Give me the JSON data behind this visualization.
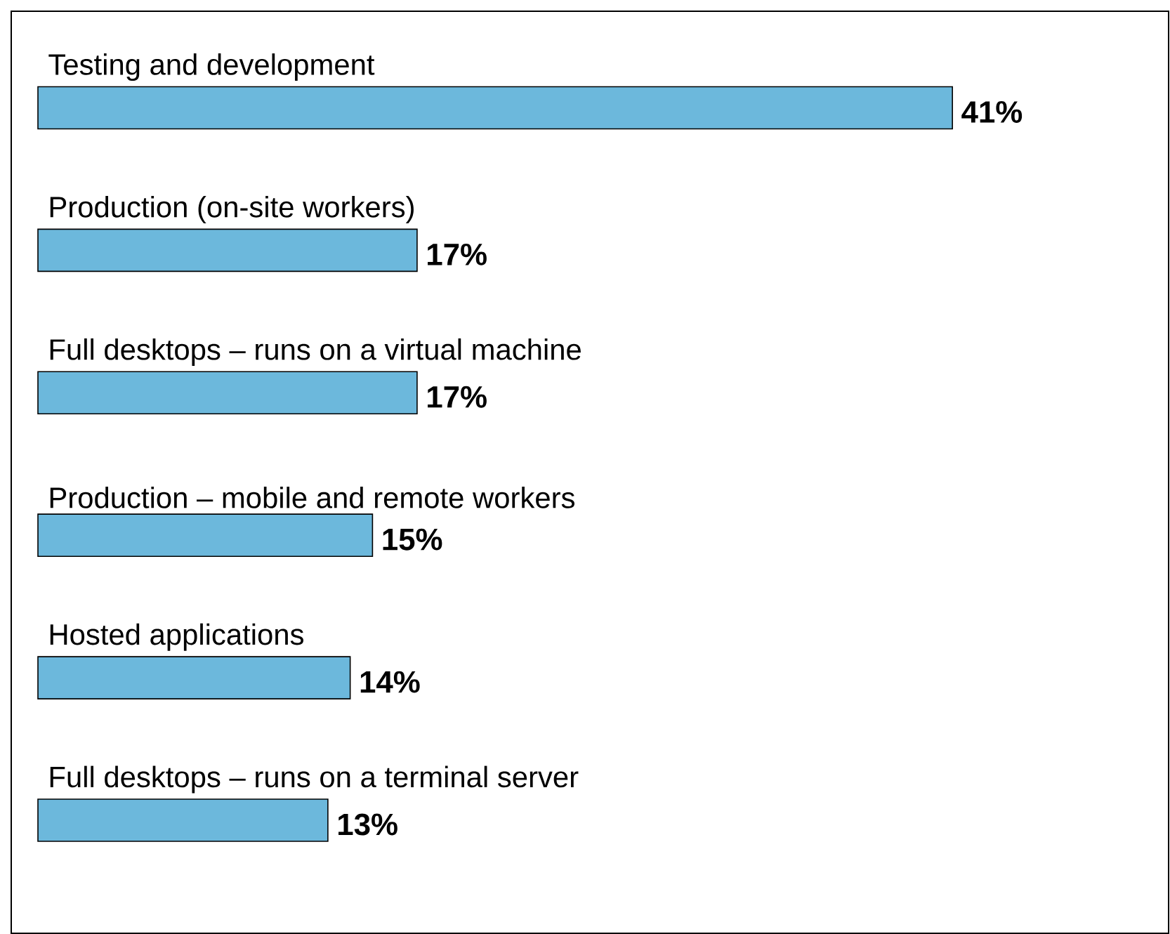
{
  "chart_data": {
    "type": "bar",
    "orientation": "horizontal",
    "color": "#6cb8dc",
    "categories": [
      "Testing and development",
      "Production (on-site workers)",
      "Full desktops – runs on a virtual machine",
      "Production – mobile and remote workers",
      "Hosted applications",
      "Full desktops – runs on a terminal server"
    ],
    "values": [
      41,
      17,
      17,
      15,
      14,
      13
    ],
    "value_labels": [
      "41%",
      "17%",
      "17%",
      "15%",
      "14%",
      "13%"
    ]
  }
}
